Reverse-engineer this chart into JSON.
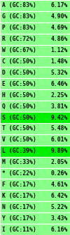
{
  "rows": [
    {
      "label": "A (GC:83%)",
      "value": "6.17%",
      "bg": "#88ff88"
    },
    {
      "label": "G (GC:83%)",
      "value": "4.90%",
      "bg": "#88ff88"
    },
    {
      "label": "P (GC:83%)",
      "value": "4.69%",
      "bg": "#88ff88"
    },
    {
      "label": "R (GC:72%)",
      "value": "4.86%",
      "bg": "#88ff88"
    },
    {
      "label": "W (GC:67%)",
      "value": "1.12%",
      "bg": "#88ff88"
    },
    {
      "label": "C (GC:50%)",
      "value": "1.48%",
      "bg": "#88ff88"
    },
    {
      "label": "D (GC:50%)",
      "value": "5.32%",
      "bg": "#88ff88"
    },
    {
      "label": "E (GC:50%)",
      "value": "6.46%",
      "bg": "#88ff88"
    },
    {
      "label": "H (GC:50%)",
      "value": "2.25%",
      "bg": "#88ff88"
    },
    {
      "label": "Q (GC:50%)",
      "value": "3.81%",
      "bg": "#88ff88"
    },
    {
      "label": "S (GC:50%)",
      "value": "9.42%",
      "bg": "#00ee00"
    },
    {
      "label": "T (GC:50%)",
      "value": "5.48%",
      "bg": "#88ff88"
    },
    {
      "label": "V (GC:50%)",
      "value": "6.01%",
      "bg": "#88ff88"
    },
    {
      "label": "L (GC:39%)",
      "value": "9.89%",
      "bg": "#00ee00"
    },
    {
      "label": "M (GC:33%)",
      "value": "2.05%",
      "bg": "#88ff88"
    },
    {
      "label": "* (GC:22%)",
      "value": "0.26%",
      "bg": "#88ff88"
    },
    {
      "label": "F (GC:17%)",
      "value": "4.61%",
      "bg": "#88ff88"
    },
    {
      "label": "K (GC:17%)",
      "value": "6.42%",
      "bg": "#88ff88"
    },
    {
      "label": "N (GC:17%)",
      "value": "5.22%",
      "bg": "#88ff88"
    },
    {
      "label": "Y (GC:17%)",
      "value": "3.43%",
      "bg": "#88ff88"
    },
    {
      "label": "I (GC:11%)",
      "value": "6.16%",
      "bg": "#88ff88"
    }
  ],
  "text_color": "#000000",
  "border_color": "#ffffff",
  "font_size": 5.8,
  "fig_width": 1.0,
  "fig_height": 3.34,
  "dpi": 100
}
